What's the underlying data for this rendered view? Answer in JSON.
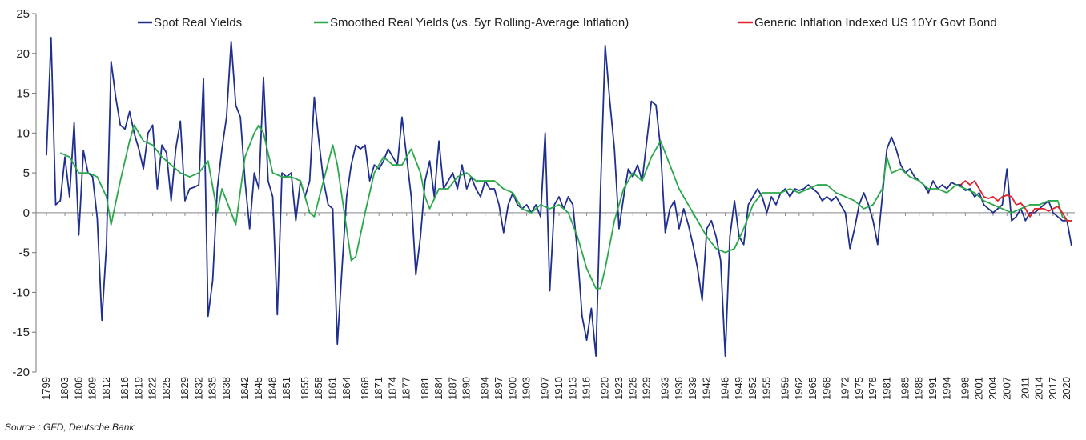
{
  "chart_data": {
    "type": "line",
    "source": "Source : GFD, Deutsche Bank",
    "legend": "top",
    "xlim": [
      1799,
      2021
    ],
    "xticks": [
      1799,
      1803,
      1806,
      1809,
      1812,
      1816,
      1819,
      1822,
      1825,
      1829,
      1832,
      1835,
      1838,
      1842,
      1845,
      1848,
      1851,
      1855,
      1858,
      1861,
      1864,
      1868,
      1871,
      1874,
      1877,
      1881,
      1884,
      1887,
      1890,
      1894,
      1897,
      1900,
      1903,
      1907,
      1910,
      1913,
      1916,
      1920,
      1923,
      1926,
      1929,
      1933,
      1936,
      1939,
      1942,
      1946,
      1949,
      1952,
      1955,
      1959,
      1962,
      1965,
      1968,
      1972,
      1975,
      1978,
      1981,
      1985,
      1988,
      1991,
      1994,
      1998,
      2001,
      2004,
      2007,
      2011,
      2014,
      2017,
      2020
    ],
    "ylim": [
      -20,
      25
    ],
    "yticks": [
      -20,
      -15,
      -10,
      -5,
      0,
      5,
      10,
      15,
      20,
      25
    ],
    "series": [
      {
        "name": "Spot Real Yields",
        "color": "#1f2f8f",
        "x": [
          1799,
          1800,
          1801,
          1802,
          1803,
          1804,
          1805,
          1806,
          1807,
          1808,
          1809,
          1810,
          1811,
          1812,
          1813,
          1814,
          1815,
          1816,
          1817,
          1818,
          1819,
          1820,
          1821,
          1822,
          1823,
          1824,
          1825,
          1826,
          1827,
          1828,
          1829,
          1830,
          1831,
          1832,
          1833,
          1834,
          1835,
          1836,
          1837,
          1838,
          1839,
          1840,
          1841,
          1842,
          1843,
          1844,
          1845,
          1846,
          1847,
          1848,
          1849,
          1850,
          1851,
          1852,
          1853,
          1854,
          1855,
          1856,
          1857,
          1858,
          1859,
          1860,
          1861,
          1862,
          1863,
          1864,
          1865,
          1866,
          1867,
          1868,
          1869,
          1870,
          1871,
          1872,
          1873,
          1874,
          1875,
          1876,
          1877,
          1878,
          1879,
          1880,
          1881,
          1882,
          1883,
          1884,
          1885,
          1886,
          1887,
          1888,
          1889,
          1890,
          1891,
          1892,
          1893,
          1894,
          1895,
          1896,
          1897,
          1898,
          1899,
          1900,
          1901,
          1902,
          1903,
          1904,
          1905,
          1906,
          1907,
          1908,
          1909,
          1910,
          1911,
          1912,
          1913,
          1914,
          1915,
          1916,
          1917,
          1918,
          1919,
          1920,
          1921,
          1922,
          1923,
          1924,
          1925,
          1926,
          1927,
          1928,
          1929,
          1930,
          1931,
          1932,
          1933,
          1934,
          1935,
          1936,
          1937,
          1938,
          1939,
          1940,
          1941,
          1942,
          1943,
          1944,
          1945,
          1946,
          1947,
          1948,
          1949,
          1950,
          1951,
          1952,
          1953,
          1954,
          1955,
          1956,
          1957,
          1958,
          1959,
          1960,
          1961,
          1962,
          1963,
          1964,
          1965,
          1966,
          1967,
          1968,
          1969,
          1970,
          1971,
          1972,
          1973,
          1974,
          1975,
          1976,
          1977,
          1978,
          1979,
          1980,
          1981,
          1982,
          1983,
          1984,
          1985,
          1986,
          1987,
          1988,
          1989,
          1990,
          1991,
          1992,
          1993,
          1994,
          1995,
          1996,
          1997,
          1998,
          1999,
          2000,
          2001,
          2002,
          2003,
          2004,
          2005,
          2006,
          2007,
          2008,
          2009,
          2010,
          2011,
          2012,
          2013,
          2014,
          2015,
          2016,
          2017,
          2018,
          2019,
          2020,
          2021
        ],
        "values": [
          7.2,
          22,
          1,
          1.5,
          7,
          2,
          11.3,
          -2.8,
          7.8,
          5,
          4.5,
          -0.7,
          -13.5,
          -4,
          19,
          14.5,
          11,
          10.5,
          12.7,
          10,
          8,
          5.5,
          10,
          11,
          3,
          8.5,
          7.5,
          1.5,
          8,
          11.5,
          1.5,
          3,
          3.2,
          3.5,
          16.8,
          -13,
          -8.5,
          3,
          8,
          12,
          21.5,
          13.5,
          12,
          4,
          -2,
          5,
          3,
          17,
          4,
          2,
          -12.8,
          5,
          4.5,
          5,
          -1,
          4,
          2,
          4,
          14.5,
          9,
          4,
          1,
          0.5,
          -16.5,
          -7,
          2,
          6,
          8.5,
          8,
          8.5,
          4,
          6,
          5.5,
          6.5,
          8,
          7,
          6,
          12,
          7,
          2,
          -7.8,
          -3,
          4,
          6.5,
          2,
          9,
          3,
          4,
          5,
          3,
          6,
          3,
          4.5,
          3,
          2,
          4,
          3,
          3,
          1,
          -2.5,
          1,
          2.5,
          1,
          0.5,
          1,
          0,
          1,
          -0.5,
          10,
          -9.8,
          1,
          2,
          0.5,
          2,
          1,
          -5,
          -13,
          -16,
          -12,
          -18,
          3,
          21,
          14,
          8,
          -2,
          2,
          5.5,
          4.5,
          6,
          4,
          9,
          14,
          13.5,
          8,
          -2.5,
          0.5,
          1.5,
          -2,
          0.5,
          -1.5,
          -4,
          -7,
          -11,
          -2,
          -1,
          -3,
          -6,
          -18,
          -3,
          1.5,
          -3,
          -4,
          1,
          2,
          3,
          2,
          0,
          2,
          1,
          2.5,
          3,
          2,
          3,
          2.8,
          3,
          3.5,
          3,
          2.5,
          1.5,
          2,
          1.5,
          2,
          1,
          0,
          -4.5,
          -2,
          1,
          2.5,
          1,
          -1,
          -4,
          2,
          8,
          9.5,
          8,
          6,
          5,
          5.5,
          4.5,
          4,
          3.5,
          2.5,
          4,
          3,
          3.5,
          3,
          3.8,
          3.5,
          3.5,
          2.8,
          3,
          2,
          2.5,
          1,
          0.5,
          0,
          0.5,
          1,
          5.5,
          -1,
          -0.5,
          0.5,
          -1,
          0,
          0,
          0.5,
          1,
          1.5,
          0,
          -0.5,
          -1,
          -1,
          -4.2
        ]
      },
      {
        "name": "Smoothed Real Yields (vs. 5yr Rolling-Average Inflation)",
        "color": "#2aa84a",
        "x": [
          1802,
          1804,
          1806,
          1808,
          1810,
          1812,
          1813,
          1815,
          1817,
          1818,
          1820,
          1822,
          1824,
          1826,
          1828,
          1830,
          1832,
          1834,
          1836,
          1837,
          1839,
          1840,
          1842,
          1844,
          1845,
          1846,
          1848,
          1850,
          1852,
          1854,
          1856,
          1857,
          1859,
          1861,
          1862,
          1864,
          1865,
          1866,
          1868,
          1870,
          1872,
          1874,
          1876,
          1878,
          1880,
          1881,
          1882,
          1884,
          1886,
          1888,
          1890,
          1892,
          1894,
          1896,
          1898,
          1900,
          1902,
          1904,
          1906,
          1908,
          1910,
          1912,
          1914,
          1916,
          1918,
          1919,
          1920,
          1922,
          1924,
          1926,
          1928,
          1930,
          1932,
          1934,
          1936,
          1938,
          1940,
          1942,
          1944,
          1946,
          1948,
          1950,
          1952,
          1954,
          1956,
          1958,
          1960,
          1962,
          1964,
          1966,
          1968,
          1970,
          1972,
          1974,
          1976,
          1978,
          1980,
          1981,
          1982,
          1984,
          1986,
          1988,
          1990,
          1992,
          1994,
          1996,
          1998,
          2000,
          2002,
          2004,
          2006,
          2008,
          2010,
          2012,
          2014,
          2016,
          2018,
          2019,
          2020,
          2021
        ],
        "values": [
          7.5,
          7,
          5,
          5,
          4.5,
          2,
          -1.5,
          4,
          9,
          11,
          9,
          8.5,
          7,
          6,
          5,
          4.5,
          5,
          6.5,
          0,
          3,
          0,
          -1.5,
          7,
          10,
          11,
          10,
          5,
          4.5,
          4.5,
          4,
          0,
          -0.5,
          4,
          8.5,
          6,
          -2,
          -6,
          -5.5,
          0,
          5,
          7,
          6,
          6,
          8,
          5,
          2,
          0.5,
          3,
          3,
          4.5,
          5,
          4,
          4,
          4,
          3,
          2.5,
          0.5,
          0,
          1,
          0.5,
          1,
          0,
          -3,
          -7,
          -9.5,
          -9.5,
          -7,
          -1,
          3,
          5,
          4,
          7,
          9,
          6,
          3,
          1,
          -1,
          -3,
          -4.5,
          -5,
          -4.5,
          -2,
          1,
          2.5,
          2.5,
          2.5,
          3,
          2.5,
          3,
          3.5,
          3.5,
          2.5,
          2,
          1.5,
          0.5,
          1,
          3,
          7,
          5,
          5.5,
          4.5,
          4,
          3,
          3,
          2.5,
          3.5,
          3,
          2.5,
          1.5,
          1,
          0.5,
          0,
          0.5,
          1,
          1,
          1.5,
          1.5,
          -0.5,
          -1,
          -1
        ]
      },
      {
        "name": "Generic Inflation Indexed US 10Yr Govt Bond",
        "color": "#e0202a",
        "x": [
          1997,
          1998,
          1999,
          2000,
          2001,
          2002,
          2003,
          2004,
          2005,
          2006,
          2007,
          2008,
          2009,
          2010,
          2011,
          2012,
          2013,
          2014,
          2015,
          2016,
          2017,
          2018,
          2019,
          2020,
          2021
        ],
        "values": [
          3.5,
          4,
          3.5,
          4,
          3,
          2,
          1.8,
          2,
          1.5,
          2,
          2.2,
          2,
          1,
          1.2,
          0.5,
          -0.5,
          0.5,
          0.5,
          0.5,
          0.2,
          0.5,
          0.8,
          0,
          -1,
          -1
        ]
      }
    ]
  }
}
